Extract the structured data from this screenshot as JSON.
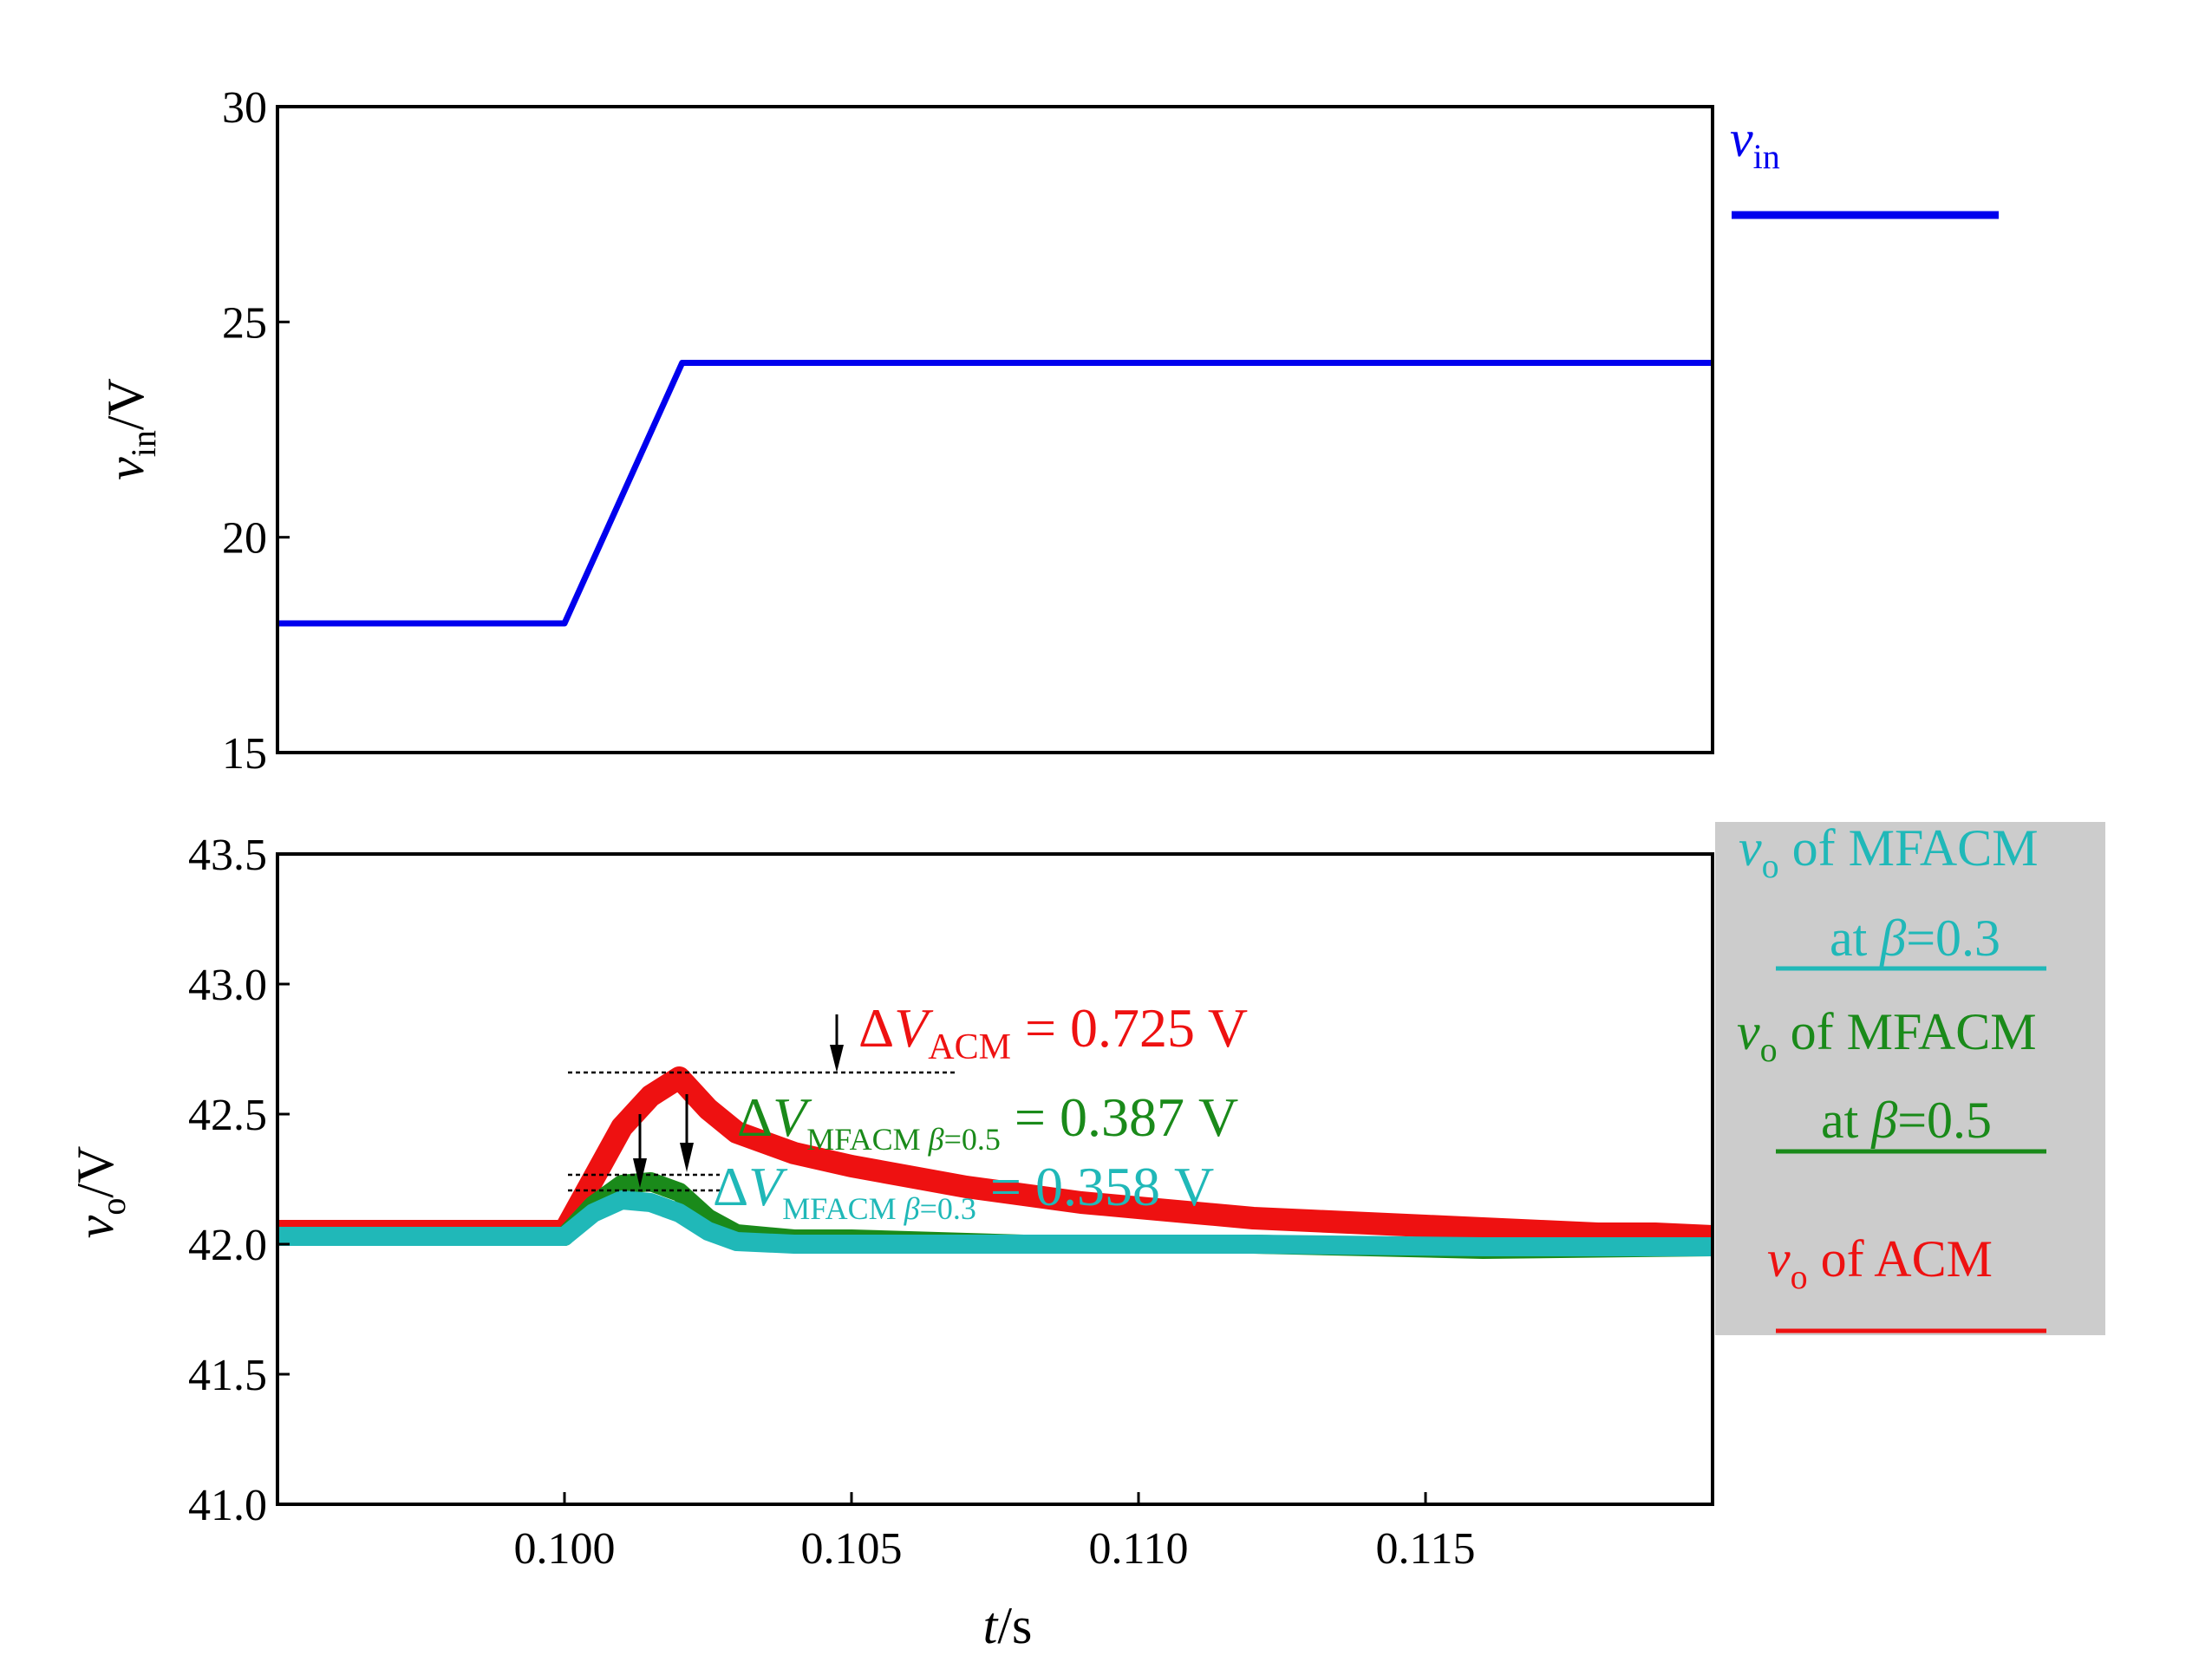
{
  "colors": {
    "vin": "#0000ee",
    "acm": "#ee1111",
    "mfacm_05": "#1a8a1a",
    "mfacm_03": "#20b8b8",
    "legend_bg": "#cccccc"
  },
  "chart_data": [
    {
      "type": "line",
      "title": "",
      "xlabel": "",
      "ylabel": {
        "var": "v",
        "sub": "in",
        "unit": "/V"
      },
      "xlim": [
        0.095,
        0.12
      ],
      "ylim": [
        15,
        30
      ],
      "yticks": [
        15,
        20,
        25,
        30
      ],
      "ytick_labels": [
        "15",
        "20",
        "25",
        "30"
      ],
      "legend_position": "right",
      "series": [
        {
          "name": {
            "var": "v",
            "sub": "in"
          },
          "color_key": "vin",
          "x": [
            0.095,
            0.1,
            0.10205,
            0.12
          ],
          "y": [
            18,
            18,
            24.05,
            24.05
          ]
        }
      ]
    },
    {
      "type": "line",
      "title": "",
      "xlabel": {
        "var": "t",
        "unit": "/s"
      },
      "ylabel": {
        "var": "v",
        "sub": "o",
        "unit": "/V"
      },
      "xlim": [
        0.095,
        0.12
      ],
      "ylim": [
        41.0,
        43.5
      ],
      "xticks": [
        0.1,
        0.105,
        0.11,
        0.115
      ],
      "xtick_labels": [
        "0.100",
        "0.105",
        "0.110",
        "0.115"
      ],
      "yticks": [
        41.0,
        41.5,
        42.0,
        42.5,
        43.0,
        43.5
      ],
      "ytick_labels": [
        "41.0",
        "41.5",
        "42.0",
        "42.5",
        "43.0",
        "43.5"
      ],
      "legend_position": "right",
      "legend": [
        {
          "var": "v",
          "sub": "o",
          "line1": " of  MFACM",
          "line2": "at ",
          "beta": "β",
          "eq": "=0.3",
          "color_key": "mfacm_03"
        },
        {
          "var": "v",
          "sub": "o",
          "line1": " of  MFACM",
          "line2": "at ",
          "beta": "β",
          "eq": "=0.5",
          "color_key": "mfacm_05"
        },
        {
          "var": "v",
          "sub": "o",
          "line1": " of  ACM",
          "color_key": "acm"
        }
      ],
      "series": [
        {
          "name": "ACM",
          "color_key": "acm",
          "x": [
            0.095,
            0.1,
            0.1005,
            0.101,
            0.1015,
            0.102,
            0.1025,
            0.103,
            0.104,
            0.105,
            0.106,
            0.107,
            0.108,
            0.109,
            0.11,
            0.111,
            0.112,
            0.113,
            0.114,
            0.115,
            0.116,
            0.117,
            0.118,
            0.119,
            0.12
          ],
          "y": [
            42.05,
            42.05,
            42.25,
            42.45,
            42.57,
            42.64,
            42.52,
            42.43,
            42.35,
            42.3,
            42.26,
            42.22,
            42.19,
            42.16,
            42.14,
            42.12,
            42.1,
            42.09,
            42.08,
            42.07,
            42.06,
            42.05,
            42.04,
            42.04,
            42.03
          ]
        },
        {
          "name": "MFACM β=0.5",
          "color_key": "mfacm_05",
          "x": [
            0.095,
            0.1,
            0.1005,
            0.101,
            0.1015,
            0.102,
            0.1025,
            0.103,
            0.104,
            0.105,
            0.108,
            0.112,
            0.116,
            0.12
          ],
          "y": [
            42.03,
            42.03,
            42.15,
            42.23,
            42.24,
            42.2,
            42.1,
            42.04,
            42.02,
            42.02,
            42.0,
            42.0,
            41.98,
            41.99
          ]
        },
        {
          "name": "MFACM β=0.3",
          "color_key": "mfacm_03",
          "x": [
            0.095,
            0.1,
            0.1005,
            0.101,
            0.1015,
            0.102,
            0.1025,
            0.103,
            0.104,
            0.105,
            0.108,
            0.112,
            0.116,
            0.12
          ],
          "y": [
            42.03,
            42.03,
            42.12,
            42.17,
            42.16,
            42.12,
            42.05,
            42.01,
            42.0,
            42.0,
            42.0,
            42.0,
            41.99,
            41.99
          ]
        }
      ],
      "annotations": [
        {
          "delta": "Δ",
          "var": "V",
          "sub": "ACM",
          "value": " = 0.725  V",
          "color_key": "acm"
        },
        {
          "delta": "Δ",
          "var": "V",
          "sub": "MFACM ",
          "beta": "β",
          "eq": "=0.5",
          "value": " = 0.387  V",
          "color_key": "mfacm_05"
        },
        {
          "delta": "Δ",
          "var": "V",
          "sub": "MFACM ",
          "beta": "β",
          "eq": "=0.3",
          "value": " = 0.358  V",
          "color_key": "mfacm_03"
        }
      ]
    }
  ]
}
